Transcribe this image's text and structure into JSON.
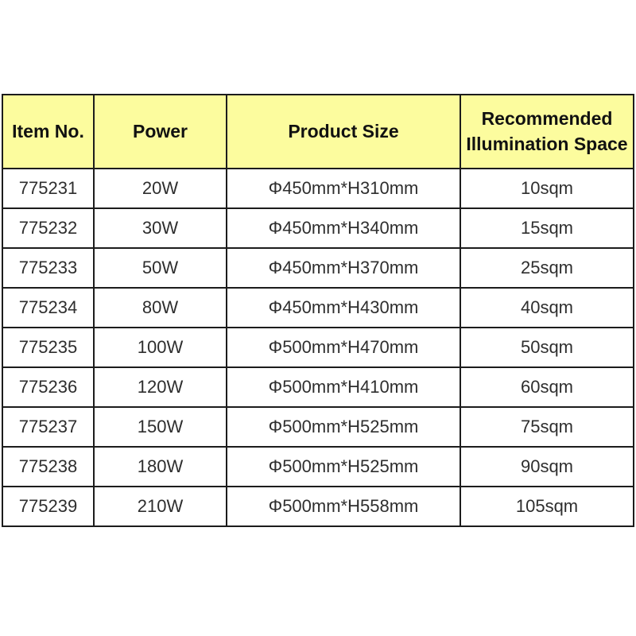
{
  "colors": {
    "page_background": "#ffffff",
    "header_background": "#fcfc9e",
    "border": "#1c1c1c",
    "header_text": "#111111",
    "cell_text": "#2e2e2e"
  },
  "table": {
    "headers": {
      "item_no": "Item No.",
      "power": "Power",
      "product_size": "Product Size",
      "illumination": "Recommended Illumination Space"
    },
    "rows": [
      {
        "item_no": "775231",
        "power": "20W",
        "product_size": "Φ450mm*H310mm",
        "illumination": "10sqm"
      },
      {
        "item_no": "775232",
        "power": "30W",
        "product_size": "Φ450mm*H340mm",
        "illumination": "15sqm"
      },
      {
        "item_no": "775233",
        "power": "50W",
        "product_size": "Φ450mm*H370mm",
        "illumination": "25sqm"
      },
      {
        "item_no": "775234",
        "power": "80W",
        "product_size": "Φ450mm*H430mm",
        "illumination": "40sqm"
      },
      {
        "item_no": "775235",
        "power": "100W",
        "product_size": "Φ500mm*H470mm",
        "illumination": "50sqm"
      },
      {
        "item_no": "775236",
        "power": "120W",
        "product_size": "Φ500mm*H410mm",
        "illumination": "60sqm"
      },
      {
        "item_no": "775237",
        "power": "150W",
        "product_size": "Φ500mm*H525mm",
        "illumination": "75sqm"
      },
      {
        "item_no": "775238",
        "power": "180W",
        "product_size": "Φ500mm*H525mm",
        "illumination": "90sqm"
      },
      {
        "item_no": "775239",
        "power": "210W",
        "product_size": "Φ500mm*H558mm",
        "illumination": "105sqm"
      }
    ]
  },
  "chart_data": {
    "type": "table",
    "title": "",
    "columns": [
      "Item No.",
      "Power",
      "Product Size",
      "Recommended Illumination Space"
    ],
    "rows": [
      [
        "775231",
        "20W",
        "Φ450mm*H310mm",
        "10sqm"
      ],
      [
        "775232",
        "30W",
        "Φ450mm*H340mm",
        "15sqm"
      ],
      [
        "775233",
        "50W",
        "Φ450mm*H370mm",
        "25sqm"
      ],
      [
        "775234",
        "80W",
        "Φ450mm*H430mm",
        "40sqm"
      ],
      [
        "775235",
        "100W",
        "Φ500mm*H470mm",
        "50sqm"
      ],
      [
        "775236",
        "120W",
        "Φ500mm*H410mm",
        "60sqm"
      ],
      [
        "775237",
        "150W",
        "Φ500mm*H525mm",
        "75sqm"
      ],
      [
        "775238",
        "180W",
        "Φ500mm*H525mm",
        "90sqm"
      ],
      [
        "775239",
        "210W",
        "Φ500mm*H558mm",
        "105sqm"
      ]
    ]
  }
}
